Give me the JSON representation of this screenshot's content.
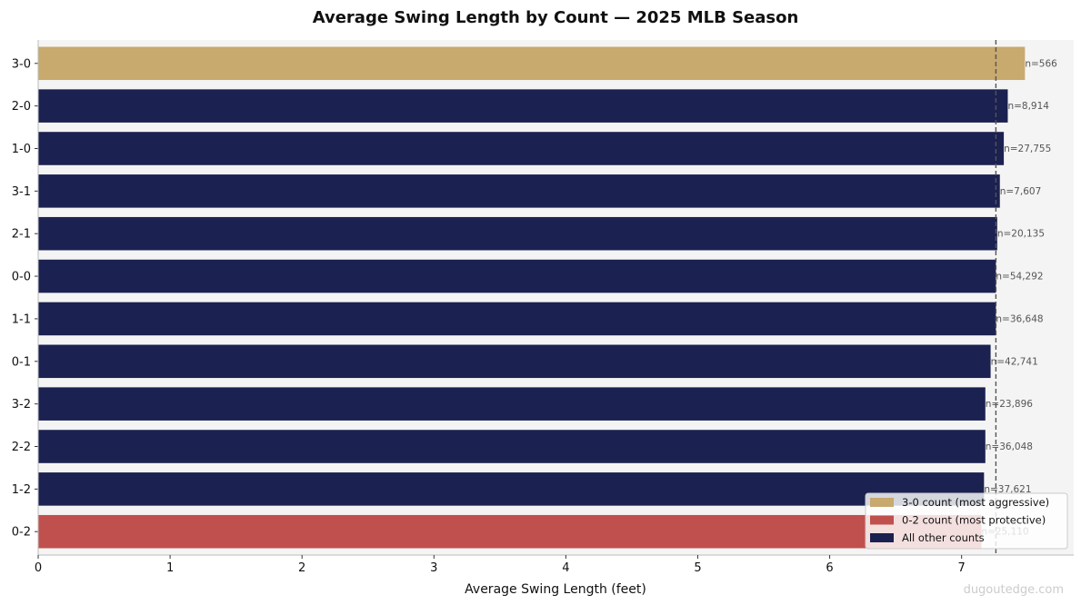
{
  "chart_data": {
    "type": "bar",
    "orientation": "horizontal",
    "title": "Average Swing Length by Count — 2025 MLB Season",
    "xlabel": "Average Swing Length (feet)",
    "ylabel": "",
    "xlim": [
      0,
      7.85
    ],
    "xticks": [
      "0",
      "1",
      "2",
      "3",
      "4",
      "5",
      "6",
      "7"
    ],
    "categories": [
      "3-0",
      "2-0",
      "1-0",
      "3-1",
      "2-1",
      "0-0",
      "1-1",
      "0-1",
      "3-2",
      "2-2",
      "1-2",
      "0-2"
    ],
    "values": [
      7.48,
      7.35,
      7.32,
      7.29,
      7.27,
      7.26,
      7.26,
      7.22,
      7.18,
      7.18,
      7.17,
      7.15
    ],
    "labels": [
      "n=566",
      "n=8,914",
      "n=27,755",
      "n=7,607",
      "n=20,135",
      "n=54,292",
      "n=36,648",
      "n=42,741",
      "n=23,896",
      "n=36,048",
      "n=37,621",
      "n=25,110"
    ],
    "bar_groups": [
      "aggressive",
      "other",
      "other",
      "other",
      "other",
      "other",
      "other",
      "other",
      "other",
      "other",
      "other",
      "protective"
    ],
    "reference_line": {
      "x": 7.26,
      "style": "dashed"
    },
    "legend": {
      "placement": "bottom-right",
      "entries": [
        {
          "label": "3-0 count (most aggressive)",
          "color": "#C8A96E"
        },
        {
          "label": "0-2 count (most protective)",
          "color": "#C0504D"
        },
        {
          "label": "All other counts",
          "color": "#1B2150"
        }
      ]
    },
    "colors": {
      "aggressive": "#C8A96E",
      "protective": "#C0504D",
      "other": "#1B2150",
      "plot_background": "#F4F4F4"
    },
    "grid": false
  },
  "watermark": "dugoutedge.com"
}
